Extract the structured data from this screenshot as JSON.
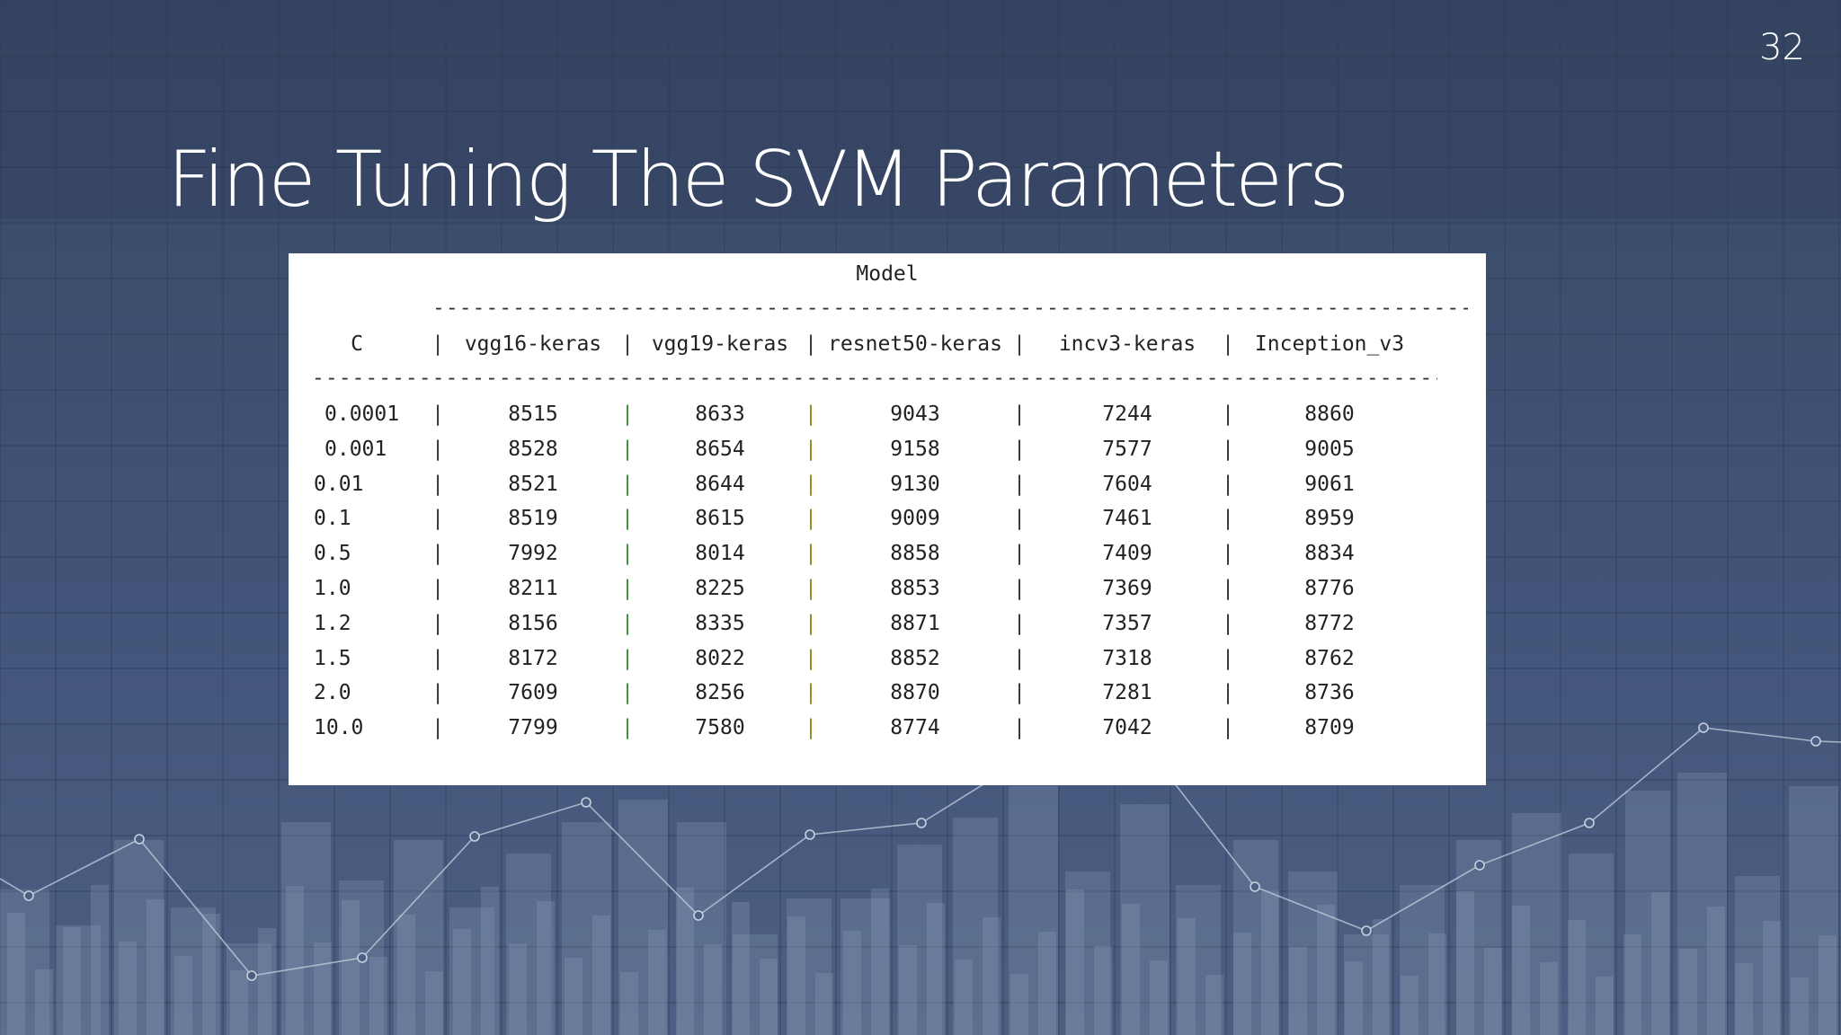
{
  "slide": {
    "title": "Fine Tuning The SVM Parameters",
    "page_number": "32"
  },
  "table": {
    "group_header": "Model",
    "c_header": "C",
    "columns": [
      "vgg16-keras",
      "vgg19-keras",
      "resnet50-keras",
      "incv3-keras",
      "Inception_v3"
    ],
    "rows": [
      {
        "c": "0.0001",
        "values": [
          "8515",
          "8633",
          "9043",
          "7244",
          "8860"
        ]
      },
      {
        "c": "0.001",
        "values": [
          "8528",
          "8654",
          "9158",
          "7577",
          "9005"
        ]
      },
      {
        "c": "0.01",
        "values": [
          "8521",
          "8644",
          "9130",
          "7604",
          "9061"
        ]
      },
      {
        "c": "0.1",
        "values": [
          "8519",
          "8615",
          "9009",
          "7461",
          "8959"
        ]
      },
      {
        "c": "0.5",
        "values": [
          "7992",
          "8014",
          "8858",
          "7409",
          "8834"
        ]
      },
      {
        "c": "1.0",
        "values": [
          "8211",
          "8225",
          "8853",
          "7369",
          "8776"
        ]
      },
      {
        "c": "1.2",
        "values": [
          "8156",
          "8335",
          "8871",
          "7357",
          "8772"
        ]
      },
      {
        "c": "1.5",
        "values": [
          "8172",
          "8022",
          "8852",
          "7318",
          "8762"
        ]
      },
      {
        "c": "2.0",
        "values": [
          "7609",
          "8256",
          "8870",
          "7281",
          "8736"
        ]
      },
      {
        "c": "10.0",
        "values": [
          "7799",
          "7580",
          "8774",
          "7042",
          "8709"
        ]
      }
    ]
  },
  "theme": {
    "background_top": "#3a4a66",
    "background_bottom": "#4a5d7e",
    "bar_color": "#8a9ab5",
    "line_color": "#c7d0de"
  }
}
